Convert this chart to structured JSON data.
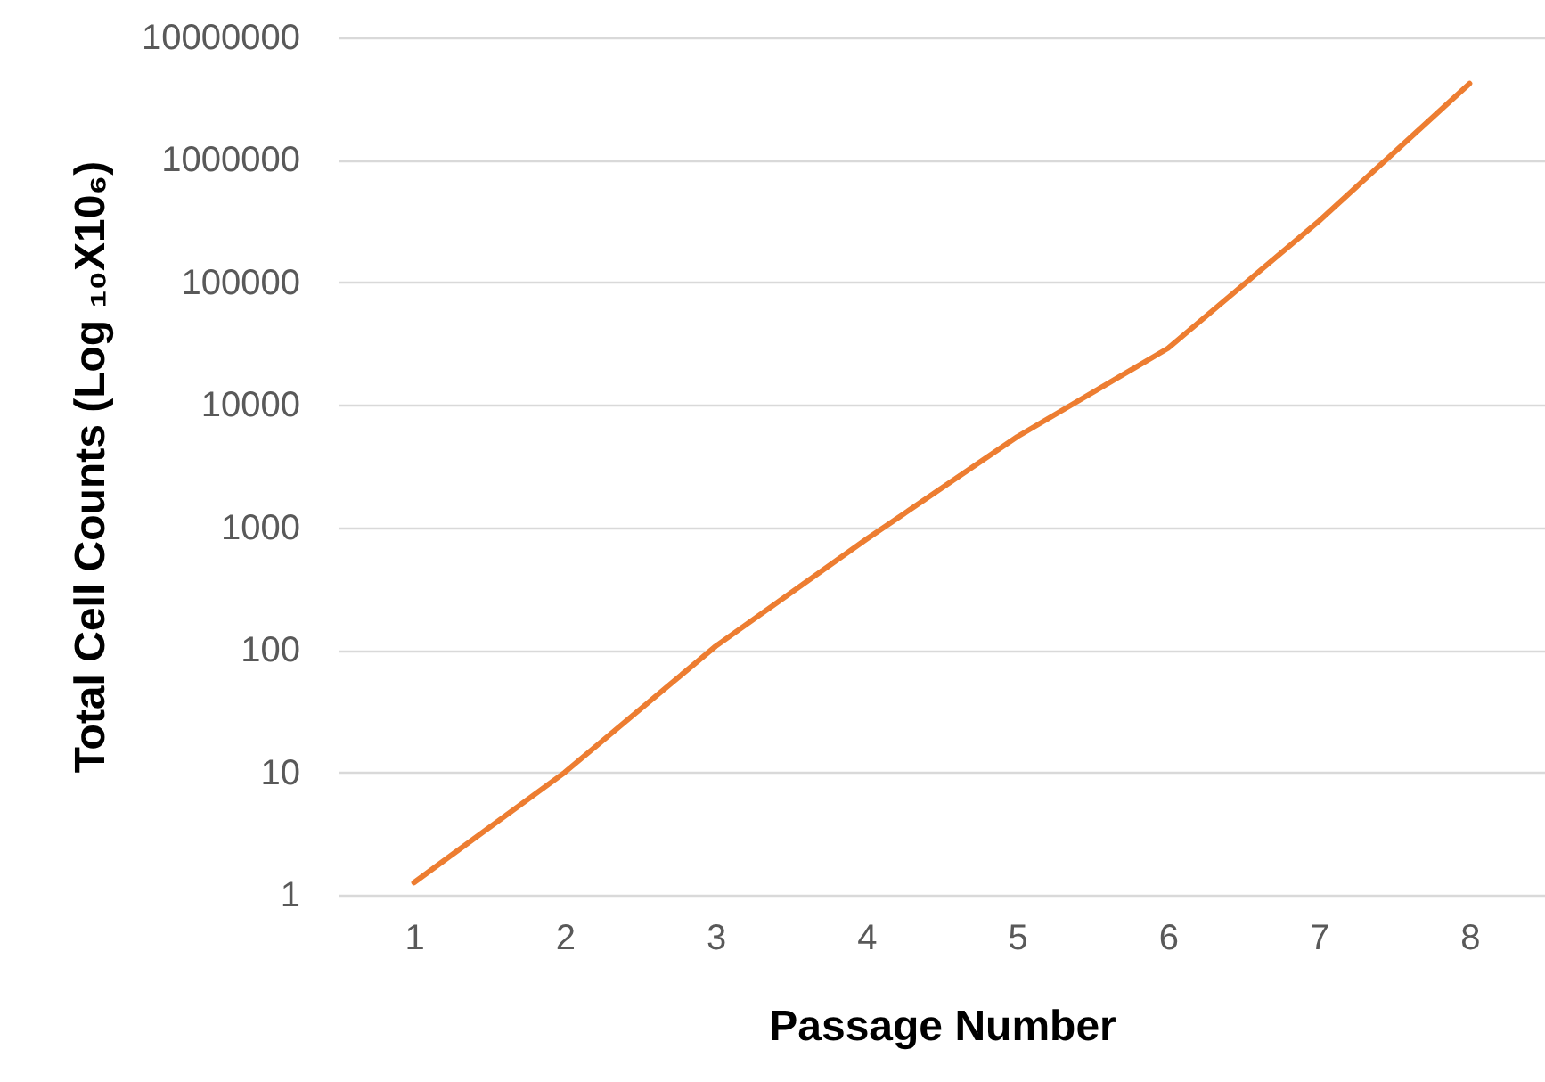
{
  "chart_data": {
    "type": "line",
    "xlabel": "Passage Number",
    "ylabel": "Total Cell Counts (Log ₁₀X10₆)",
    "categories": [
      "1",
      "2",
      "3",
      "4",
      "5",
      "6",
      "7",
      "8"
    ],
    "series": [
      {
        "color": "#ed7d31",
        "values": [
          1.26,
          10,
          107,
          800,
          5500,
          29000,
          316000,
          4200000
        ]
      }
    ],
    "ylim": [
      1,
      10000000
    ],
    "yticks": [
      1,
      10,
      100,
      1000,
      10000,
      100000,
      1000000,
      10000000
    ],
    "log": true,
    "grid": "y",
    "marker": "none",
    "line_style": "solid"
  }
}
